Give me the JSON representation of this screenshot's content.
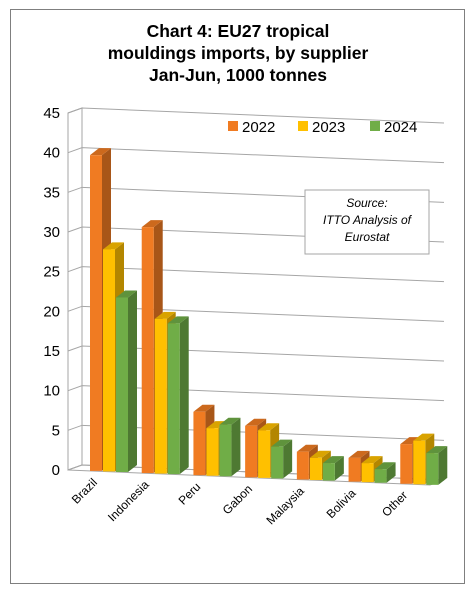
{
  "chart_data": {
    "type": "bar",
    "title_lines": [
      "Chart 4: EU27 tropical",
      "mouldings imports, by supplier",
      "Jan-Jun, 1000 tonnes"
    ],
    "categories": [
      "Brazil",
      "Indonesia",
      "Peru",
      "Gabon",
      "Malaysia",
      "Bolivia",
      "Other"
    ],
    "series": [
      {
        "name": "2022",
        "values": [
          39.8,
          31.0,
          8.0,
          6.5,
          3.5,
          3.0,
          5.0
        ]
      },
      {
        "name": "2023",
        "values": [
          28.0,
          19.5,
          6.0,
          6.0,
          2.8,
          2.4,
          5.5
        ]
      },
      {
        "name": "2024",
        "values": [
          22.0,
          19.0,
          6.5,
          4.0,
          2.2,
          1.7,
          4.0
        ]
      }
    ],
    "colors": {
      "2022": "#f07b22",
      "2023": "#ffc000",
      "2024": "#70ad47"
    },
    "yticks": [
      "0",
      "5",
      "10",
      "15",
      "20",
      "25",
      "30",
      "35",
      "40",
      "45"
    ],
    "ylim": [
      0,
      45
    ],
    "legend_position": "top-right",
    "grid": true,
    "annotation": [
      "Source:",
      "ITTO Analysis of",
      "Eurostat"
    ]
  }
}
